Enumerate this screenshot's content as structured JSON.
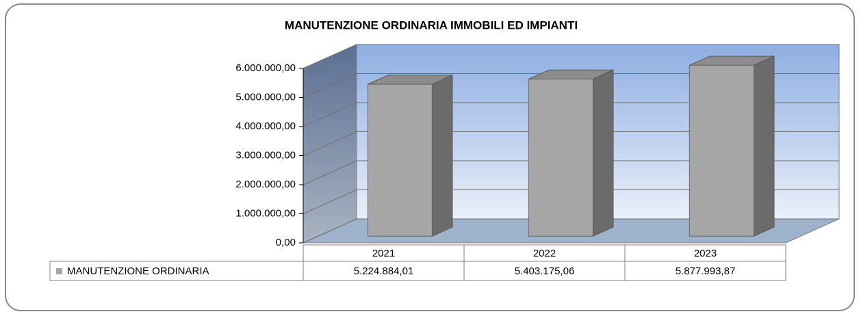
{
  "chart_data": {
    "type": "bar",
    "title": "MANUTENZIONE ORDINARIA IMMOBILI ED IMPIANTI",
    "categories": [
      "2021",
      "2022",
      "2023"
    ],
    "series": [
      {
        "name": "MANUTENZIONE ORDINARIA",
        "color": "#a6a6a6",
        "values": [
          5224884.01,
          5403175.06,
          5877993.87
        ],
        "value_labels": [
          "5.224.884,01",
          "5.403.175,06",
          "5.877.993,87"
        ]
      }
    ],
    "ylim": [
      0,
      6000000
    ],
    "yticks": [
      {
        "value": 0,
        "label": "0,00"
      },
      {
        "value": 1000000,
        "label": "1.000.000,00"
      },
      {
        "value": 2000000,
        "label": "2.000.000,00"
      },
      {
        "value": 3000000,
        "label": "3.000.000,00"
      },
      {
        "value": 4000000,
        "label": "4.000.000,00"
      },
      {
        "value": 5000000,
        "label": "5.000.000,00"
      },
      {
        "value": 6000000,
        "label": "6.000.000,00"
      }
    ],
    "grid": true
  }
}
